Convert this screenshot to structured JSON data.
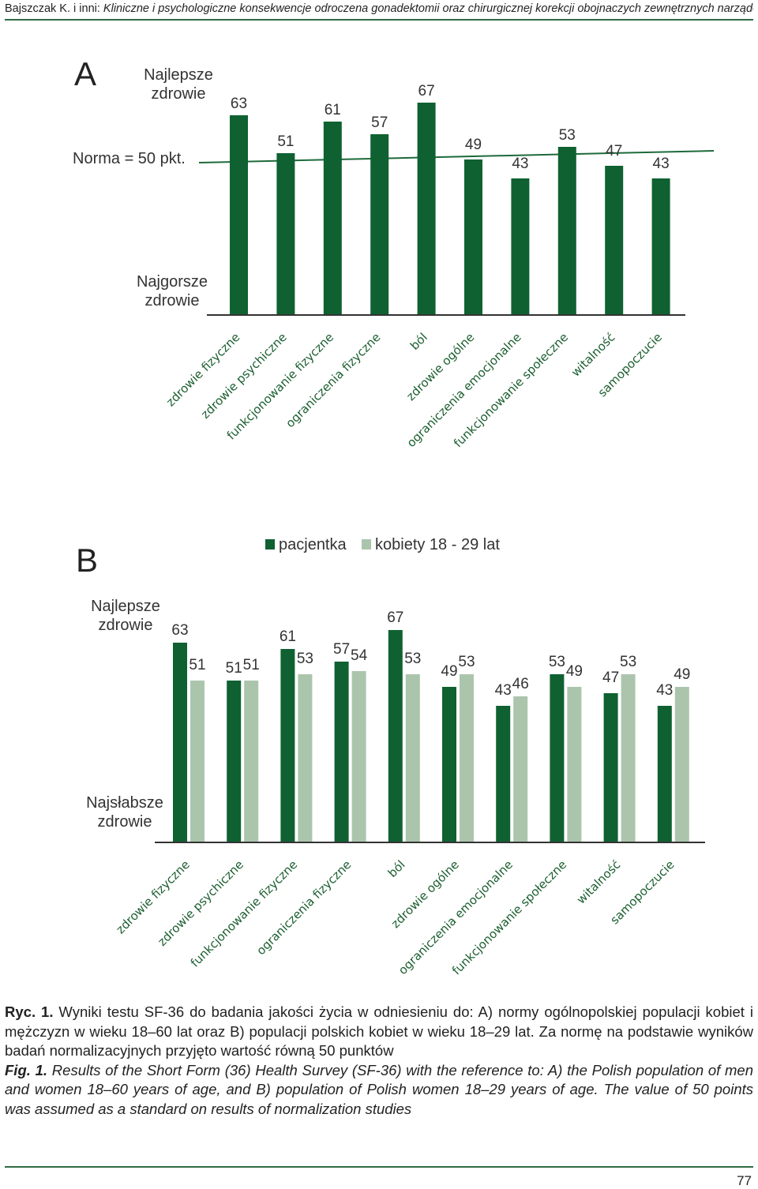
{
  "running_head": {
    "authors": "Bajszczak K. i inni: ",
    "title": "Kliniczne i psychologiczne konsekwencje odroczena gonadektomii oraz chirurgicznej korekcji obojnaczych zewnętrznych narządów płciowych..."
  },
  "colors": {
    "dark_green": "#0f6131",
    "light_green": "#abc5ad",
    "norm_line": "#1d6a3b",
    "category_text": "#1a5e2f"
  },
  "chart_data": [
    {
      "panel": "A",
      "type": "bar",
      "top_label": "Najlepsze zdrowie",
      "bottom_label": "Najgorsze zdrowie",
      "norm_label": "Norma = 50 pkt.",
      "norm_value": 50,
      "categories": [
        "zdrowie fizyczne",
        "zdrowie psychiczne",
        "funkcjonowanie fizyczne",
        "ograniczenia fizyczne",
        "ból",
        "zdrowie ogólne",
        "ograniczenia emocjonalne",
        "funkcjonowanie społeczne",
        "witalność",
        "samopoczucie"
      ],
      "values": [
        63,
        51,
        61,
        57,
        67,
        49,
        43,
        53,
        47,
        43
      ],
      "ylim": [
        0,
        70
      ]
    },
    {
      "panel": "B",
      "type": "bar",
      "top_label": "Najlepsze zdrowie",
      "bottom_label": "Najsłabsze zdrowie",
      "legend": [
        "pacjentka",
        "kobiety 18 - 29 lat"
      ],
      "legend_position": "top",
      "categories": [
        "zdrowie fizyczne",
        "zdrowie psychiczne",
        "funkcjonowanie fizyczne",
        "ograniczenia fizyczne",
        "ból",
        "zdrowie ogólne",
        "ograniczenia emocjonalne",
        "funkcjonowanie społeczne",
        "witalność",
        "samopoczucie"
      ],
      "series": [
        {
          "name": "pacjentka",
          "values": [
            63,
            51,
            61,
            57,
            67,
            49,
            43,
            53,
            47,
            43
          ]
        },
        {
          "name": "kobiety 18 - 29 lat",
          "values": [
            51,
            51,
            53,
            54,
            53,
            53,
            46,
            49,
            53,
            49
          ]
        }
      ],
      "ylim": [
        0,
        70
      ]
    }
  ],
  "caption": {
    "pl_label": "Ryc. 1.",
    "pl_text": " Wyniki testu SF-36 do badania jakości życia w odniesieniu do: A) normy ogólnopolskiej populacji kobiet i mężczyzn w wieku 18–60 lat oraz B) populacji polskich kobiet w wieku 18–29 lat. Za normę na podstawie wyników badań normalizacyjnych przyjęto wartość równą 50 punktów",
    "en_label": "Fig. 1.",
    "en_text": " Results of the Short Form (36) Health Survey (SF-36) with the reference to: A) the Polish population of men and women 18–60 years of age, and B) population of Polish women 18–29 years of age. The value of 50 points was assumed as a standard on results of normalization studies"
  },
  "page_number": "77"
}
